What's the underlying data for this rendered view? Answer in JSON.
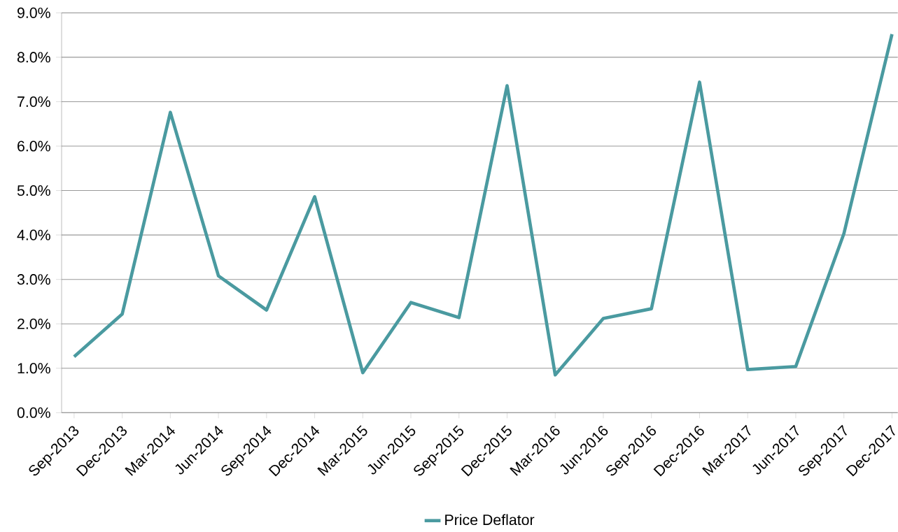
{
  "chart_data": {
    "type": "line",
    "categories": [
      "Sep-2013",
      "Dec-2013",
      "Mar-2014",
      "Jun-2014",
      "Sep-2014",
      "Dec-2014",
      "Mar-2015",
      "Jun-2015",
      "Sep-2015",
      "Dec-2015",
      "Mar-2016",
      "Jun-2016",
      "Sep-2016",
      "Dec-2016",
      "Mar-2017",
      "Jun-2017",
      "Sep-2017",
      "Dec-2017"
    ],
    "series": [
      {
        "name": "Price Deflator",
        "color": "#4a9aa0",
        "values": [
          1.26,
          2.22,
          6.76,
          3.08,
          2.31,
          4.86,
          0.9,
          2.48,
          2.14,
          7.36,
          0.85,
          2.12,
          2.34,
          7.44,
          0.97,
          1.04,
          4.03,
          8.52
        ]
      }
    ],
    "ylim": [
      0,
      9
    ],
    "yticks": [
      {
        "value": 0,
        "label": "0.0%"
      },
      {
        "value": 1,
        "label": "1.0%"
      },
      {
        "value": 2,
        "label": "2.0%"
      },
      {
        "value": 3,
        "label": "3.0%"
      },
      {
        "value": 4,
        "label": "4.0%"
      },
      {
        "value": 5,
        "label": "5.0%"
      },
      {
        "value": 6,
        "label": "6.0%"
      },
      {
        "value": 7,
        "label": "7.0%"
      },
      {
        "value": 8,
        "label": "8.0%"
      },
      {
        "value": 9,
        "label": "9.0%"
      }
    ],
    "grid": "y",
    "legend": "bottom",
    "marker": "none",
    "line_style": "solid"
  }
}
